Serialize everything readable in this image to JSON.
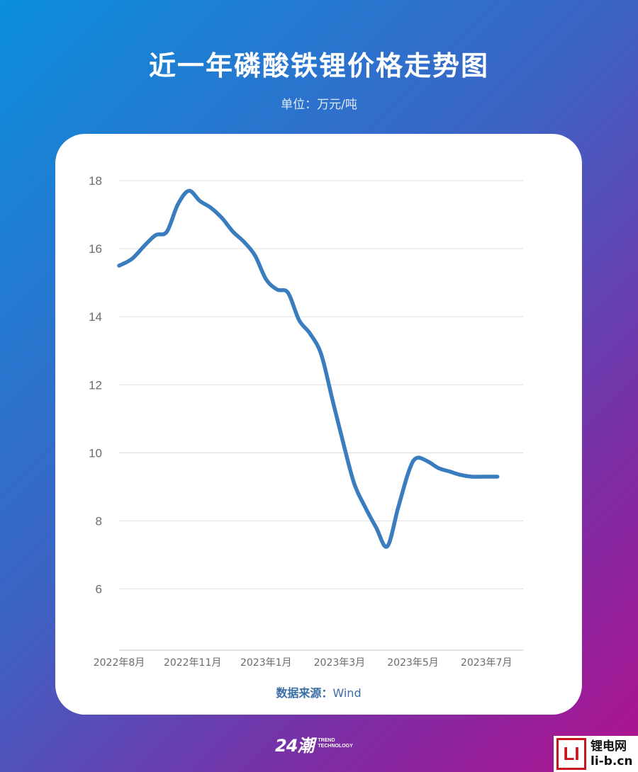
{
  "header": {
    "title": "近一年磷酸铁锂价格走势图",
    "subtitle": "单位：万元/吨"
  },
  "chart_data": {
    "type": "line",
    "title": "近一年磷酸铁锂价格走势图",
    "ylim": [
      4.2,
      18
    ],
    "yticks": [
      6,
      8,
      10,
      12,
      14,
      16,
      18
    ],
    "grid": true,
    "xlim": [
      0,
      11
    ],
    "x_tick_labels": [
      {
        "label": "2022年8月",
        "pos": 0
      },
      {
        "label": "2022年11月",
        "pos": 2
      },
      {
        "label": "2023年1月",
        "pos": 4
      },
      {
        "label": "2023年3月",
        "pos": 6
      },
      {
        "label": "2023年5月",
        "pos": 8
      },
      {
        "label": "2023年7月",
        "pos": 10
      }
    ],
    "series": [
      {
        "color": "#3a7dbf",
        "x": [
          0,
          0.35,
          0.7,
          1.0,
          1.3,
          1.6,
          1.9,
          2.2,
          2.5,
          2.8,
          3.1,
          3.4,
          3.7,
          4.0,
          4.3,
          4.6,
          4.9,
          5.2,
          5.5,
          5.8,
          6.1,
          6.4,
          6.7,
          7.0,
          7.3,
          7.6,
          7.9,
          8.1,
          8.4,
          8.7,
          9.0,
          9.3,
          9.6,
          9.9,
          10.3
        ],
        "y": [
          15.5,
          15.7,
          16.1,
          16.4,
          16.5,
          17.3,
          17.7,
          17.4,
          17.2,
          16.9,
          16.5,
          16.2,
          15.8,
          15.1,
          14.8,
          14.7,
          13.9,
          13.5,
          12.9,
          11.6,
          10.3,
          9.1,
          8.4,
          7.8,
          7.25,
          8.4,
          9.5,
          9.85,
          9.75,
          9.55,
          9.45,
          9.35,
          9.3,
          9.3,
          9.3
        ]
      }
    ]
  },
  "source": {
    "label": "数据来源：",
    "value": "Wind"
  },
  "footer": {
    "logo_num": "24潮",
    "logo_line1": "TREND",
    "logo_line2": "TECHNOLOGY"
  },
  "watermark": {
    "mark": "LI",
    "line1": "锂电网",
    "line2": "li-b.cn"
  }
}
